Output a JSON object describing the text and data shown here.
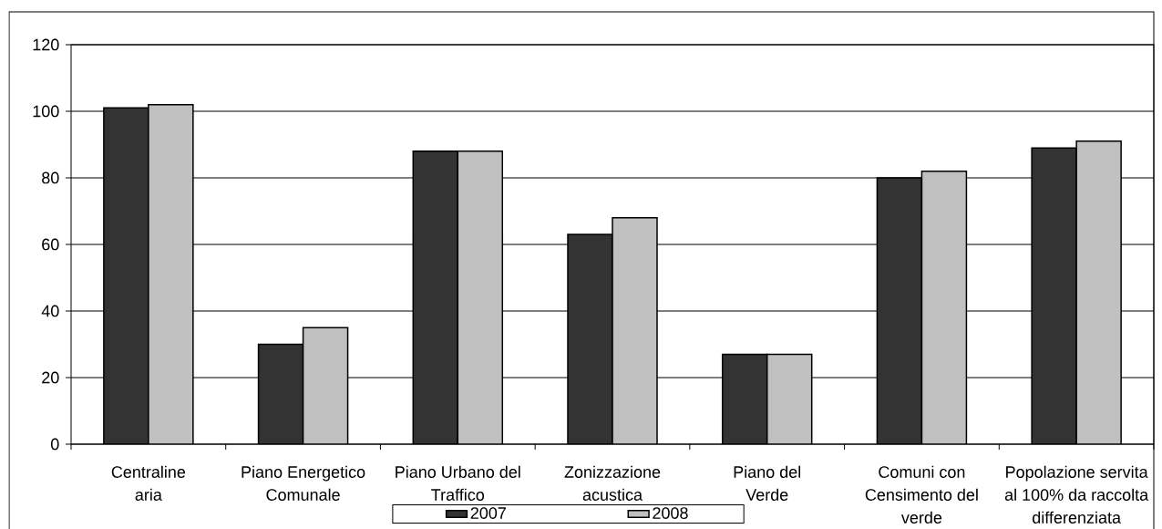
{
  "chart_data": {
    "type": "bar",
    "categories": [
      "Centraline aria",
      "Piano Energetico Comunale",
      "Piano Urbano del Traffico",
      "Zonizzazione acustica",
      "Piano del Verde",
      "Comuni con Censimento del verde",
      "Popolazione servita al 100% da raccolta differenziata"
    ],
    "series": [
      {
        "name": "2007",
        "color": "#333333",
        "values": [
          101,
          30,
          88,
          63,
          27,
          80,
          89
        ]
      },
      {
        "name": "2008",
        "color": "#c0c0c0",
        "values": [
          102,
          35,
          88,
          68,
          27,
          82,
          91
        ]
      }
    ],
    "ylim": [
      0,
      120
    ],
    "yticks": [
      0,
      20,
      40,
      60,
      80,
      100,
      120
    ],
    "grid": "y",
    "legend": "bottom"
  }
}
